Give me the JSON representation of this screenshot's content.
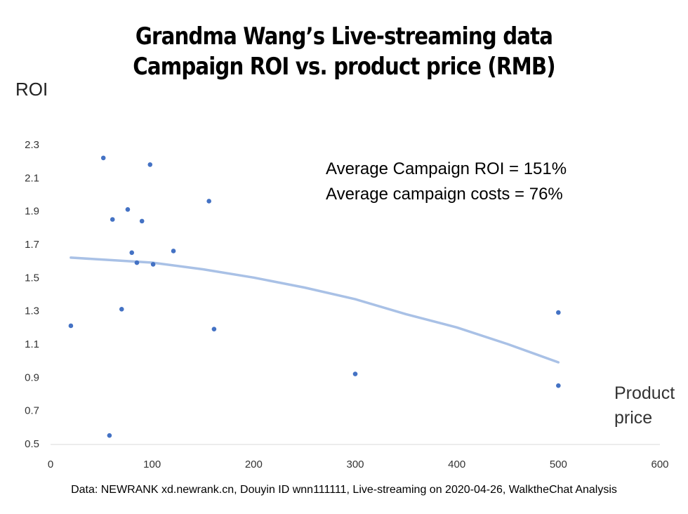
{
  "chart_data": {
    "type": "scatter",
    "title_lines": [
      "Grandma Wang’s Live-streaming data",
      "Campaign ROI vs. product price  (RMB)"
    ],
    "ylabel": "ROI",
    "xlabel": "Product price",
    "xlim": [
      0,
      600
    ],
    "ylim": [
      0.5,
      2.3
    ],
    "x_ticks": [
      "0",
      "100",
      "200",
      "300",
      "400",
      "500",
      "600"
    ],
    "y_ticks": [
      "2.3",
      "2.1",
      "1.9",
      "1.7",
      "1.5",
      "1.3",
      "1.1",
      "0.9",
      "0.7",
      "0.5"
    ],
    "x_tick_values": [
      0,
      100,
      200,
      300,
      400,
      500,
      600
    ],
    "y_tick_values": [
      2.3,
      2.1,
      1.9,
      1.7,
      1.5,
      1.3,
      1.1,
      0.9,
      0.7,
      0.5
    ],
    "grid": false,
    "point_color": "#4472C4",
    "trendline_color": "#A9C1E6",
    "points": [
      {
        "x": 20,
        "y": 1.21
      },
      {
        "x": 52,
        "y": 2.22
      },
      {
        "x": 58,
        "y": 0.55
      },
      {
        "x": 61,
        "y": 1.85
      },
      {
        "x": 70,
        "y": 1.31
      },
      {
        "x": 76,
        "y": 1.91
      },
      {
        "x": 80,
        "y": 1.65
      },
      {
        "x": 85,
        "y": 1.59
      },
      {
        "x": 90,
        "y": 1.84
      },
      {
        "x": 98,
        "y": 2.18
      },
      {
        "x": 101,
        "y": 1.58
      },
      {
        "x": 121,
        "y": 1.66
      },
      {
        "x": 156,
        "y": 1.96
      },
      {
        "x": 161,
        "y": 1.19
      },
      {
        "x": 300,
        "y": 0.92
      },
      {
        "x": 500,
        "y": 1.29
      },
      {
        "x": 500,
        "y": 0.85
      }
    ],
    "trendline": {
      "type": "polynomial",
      "x_range": [
        20,
        500
      ],
      "points": [
        {
          "x": 20,
          "y": 1.62
        },
        {
          "x": 100,
          "y": 1.59
        },
        {
          "x": 150,
          "y": 1.55
        },
        {
          "x": 200,
          "y": 1.5
        },
        {
          "x": 250,
          "y": 1.44
        },
        {
          "x": 300,
          "y": 1.37
        },
        {
          "x": 350,
          "y": 1.28
        },
        {
          "x": 400,
          "y": 1.2
        },
        {
          "x": 450,
          "y": 1.1
        },
        {
          "x": 500,
          "y": 0.99
        }
      ]
    },
    "annotations": [
      "Average Campaign ROI = 151%",
      "Average campaign costs = 76%"
    ]
  },
  "footer": "Data: NEWRANK xd.newrank.cn, Douyin ID wnn111111, Live-streaming on 2020-04-26, WalktheChat Analysis",
  "legend": {
    "title1": "Grandma Wang’s Live-streaming data",
    "title2": "Campaign ROI vs. product price  (RMB)"
  }
}
